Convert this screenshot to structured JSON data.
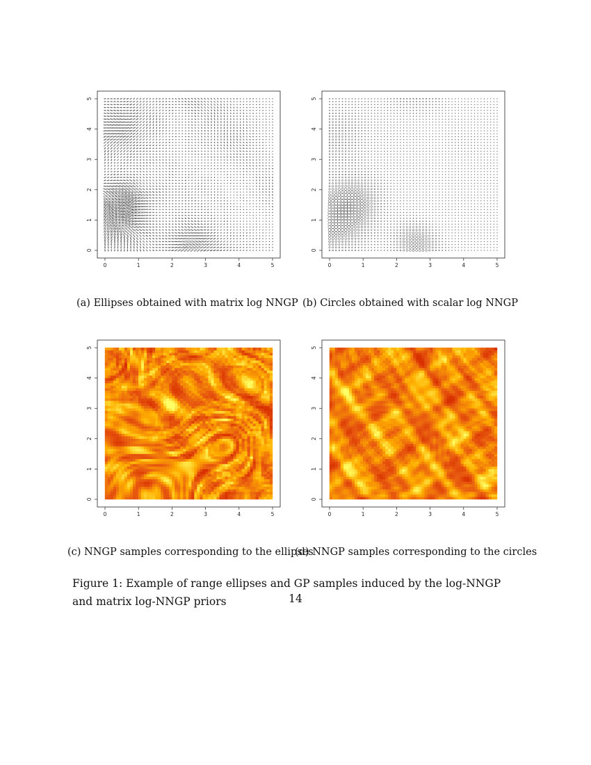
{
  "panels": [
    {
      "id": "a",
      "kind": "ellipses",
      "caption": "(a) Ellipses obtained with matrix log NNGP"
    },
    {
      "id": "b",
      "kind": "circles",
      "caption": "(b) Circles obtained with scalar log NNGP"
    },
    {
      "id": "c",
      "kind": "field-anisotropic",
      "caption": "(c) NNGP samples corresponding to the ellipses"
    },
    {
      "id": "d",
      "kind": "field-isotropic",
      "caption": "(d) NNGP samples corresponding to the circles"
    }
  ],
  "axis_ticks": {
    "x": [
      "0",
      "1",
      "2",
      "3",
      "4",
      "5"
    ],
    "y": [
      "0",
      "1",
      "2",
      "3",
      "4",
      "5"
    ]
  },
  "colors": {
    "low": "#ffff66",
    "mid": "#ffb000",
    "high": "#e85a10",
    "peak": "#d83000"
  },
  "figure_caption": "Figure 1: Example of range ellipses and GP samples induced by the log-NNGP and matrix log-NNGP priors",
  "page_number": "14"
}
